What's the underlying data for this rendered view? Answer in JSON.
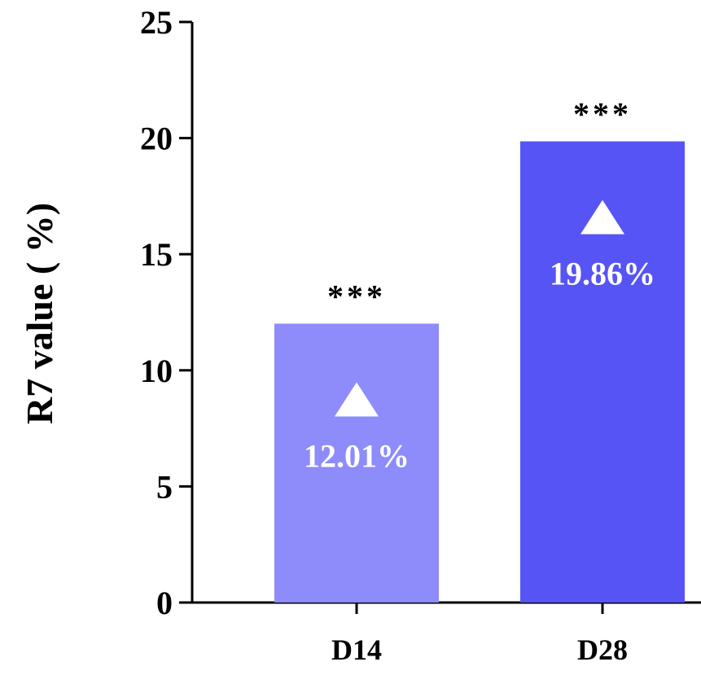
{
  "chart_data": {
    "type": "bar",
    "categories": [
      "D14",
      "D28"
    ],
    "values": [
      12.01,
      19.86
    ],
    "value_labels": [
      "12.01%",
      "19.86%"
    ],
    "significance": [
      "***",
      "***"
    ],
    "colors": [
      "#8d8cfa",
      "#5654f4"
    ],
    "marker": "up-triangle",
    "title": "",
    "xlabel": "",
    "ylabel": "R7 value ( %)",
    "ylim": [
      0,
      25
    ],
    "yticks": [
      0,
      5,
      10,
      15,
      20,
      25
    ],
    "grid": false,
    "legend": "none"
  }
}
